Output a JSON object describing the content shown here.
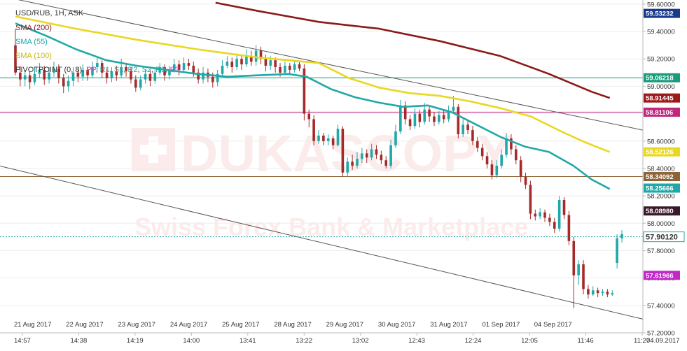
{
  "chart_data": {
    "type": "candlestick",
    "title": "USD/RUB, 1H, ASK",
    "ylim": [
      57.2,
      59.63
    ],
    "y_ticks": [
      "59.60000",
      "59.40000",
      "59.20000",
      "59.00000",
      "58.80000",
      "58.60000",
      "58.40000",
      "58.20000",
      "58.00000",
      "57.80000",
      "57.60000",
      "57.40000",
      "57.20000"
    ],
    "date_labels": [
      "21 Aug 2017",
      "22 Aug 2017",
      "23 Aug 2017",
      "24 Aug 2017",
      "25 Aug 2017",
      "28 Aug 2017",
      "29 Aug 2017",
      "30 Aug 2017",
      "31 Aug 2017",
      "01 Sep 2017",
      "04 Sep 2017"
    ],
    "time_labels": [
      "14:57",
      "14:38",
      "14:19",
      "14:00",
      "13:41",
      "13:22",
      "13:02",
      "12:43",
      "12:24",
      "12:05",
      "11:46",
      "11:27"
    ],
    "time_end_date": "04.09.2017",
    "legend": [
      {
        "name": "SMA (200)",
        "color": "#8b1a1a"
      },
      {
        "name": "SMA (55)",
        "color": "#20a8a8"
      },
      {
        "name": "SMA (100)",
        "color": "#e8d820"
      }
    ],
    "pivot_legend": {
      "label": "PIVOTPOINT (0, 8)",
      "items": [
        {
          "name": "PP",
          "color": "#d040c8"
        },
        {
          "name": "R1",
          "color": "#20a8a8"
        },
        {
          "name": "S1",
          "color": "#20a8a8"
        },
        {
          "name": "R2",
          "color": "#20a8a8"
        },
        {
          "name": "S2",
          "color": "#20a8a8"
        },
        {
          "name": "R3",
          "color": "#20a8a8"
        },
        {
          "name": "S3",
          "color": "#d040c8"
        }
      ]
    },
    "badges": [
      {
        "value": "59.53232",
        "color": "#1a3a8c"
      },
      {
        "value": "59.06218",
        "color": "#1a9c7c"
      },
      {
        "value": "58.91445",
        "color": "#9c1a1a"
      },
      {
        "value": "58.81106",
        "color": "#c0287c"
      },
      {
        "value": "58.52126",
        "color": "#e8d820"
      },
      {
        "value": "58.34092",
        "color": "#8c6438"
      },
      {
        "value": "58.25666",
        "color": "#20a8a8"
      },
      {
        "value": "58.08980",
        "color": "#3a1a2a"
      },
      {
        "value": "57.90120",
        "color": "#20a8a8",
        "current": true
      },
      {
        "value": "57.61966",
        "color": "#c028c8"
      }
    ],
    "horizontal_levels": [
      {
        "value": 59.06218,
        "color": "#1a9c7c"
      },
      {
        "value": 58.81106,
        "color": "#c0287c"
      },
      {
        "value": 58.34092,
        "color": "#8c6438"
      },
      {
        "value": 57.9012,
        "color": "#20a8a8",
        "dashed": true
      }
    ],
    "trend_lines": [
      {
        "from": [
          0,
          59.66
        ],
        "to": [
          1.0,
          58.68
        ]
      },
      {
        "from": [
          -0.02,
          58.44
        ],
        "to": [
          1.0,
          57.3
        ]
      }
    ],
    "sma200": [
      [
        0.33,
        59.61
      ],
      [
        0.4,
        59.55
      ],
      [
        0.5,
        59.47
      ],
      [
        0.6,
        59.42
      ],
      [
        0.7,
        59.33
      ],
      [
        0.8,
        59.22
      ],
      [
        0.88,
        59.09
      ],
      [
        0.95,
        58.96
      ],
      [
        0.98,
        58.915
      ]
    ],
    "sma100": [
      [
        0.0,
        59.51
      ],
      [
        0.1,
        59.42
      ],
      [
        0.2,
        59.34
      ],
      [
        0.3,
        59.27
      ],
      [
        0.4,
        59.21
      ],
      [
        0.5,
        59.17
      ],
      [
        0.55,
        59.06
      ],
      [
        0.6,
        58.99
      ],
      [
        0.65,
        58.95
      ],
      [
        0.7,
        58.93
      ],
      [
        0.75,
        58.89
      ],
      [
        0.8,
        58.84
      ],
      [
        0.85,
        58.78
      ],
      [
        0.9,
        58.67
      ],
      [
        0.94,
        58.59
      ],
      [
        0.98,
        58.52
      ]
    ],
    "sma55": [
      [
        0.0,
        59.46
      ],
      [
        0.05,
        59.37
      ],
      [
        0.1,
        59.27
      ],
      [
        0.15,
        59.19
      ],
      [
        0.2,
        59.15
      ],
      [
        0.25,
        59.12
      ],
      [
        0.3,
        59.09
      ],
      [
        0.35,
        59.07
      ],
      [
        0.4,
        59.08
      ],
      [
        0.45,
        59.09
      ],
      [
        0.48,
        59.07
      ],
      [
        0.52,
        58.98
      ],
      [
        0.56,
        58.92
      ],
      [
        0.6,
        58.88
      ],
      [
        0.64,
        58.85
      ],
      [
        0.68,
        58.86
      ],
      [
        0.72,
        58.81
      ],
      [
        0.76,
        58.72
      ],
      [
        0.8,
        58.63
      ],
      [
        0.84,
        58.56
      ],
      [
        0.88,
        58.52
      ],
      [
        0.92,
        58.42
      ],
      [
        0.95,
        58.32
      ],
      [
        0.98,
        58.25
      ]
    ],
    "candles": [
      [
        59.3,
        59.1,
        59.42,
        59.08
      ],
      [
        59.1,
        59.05,
        59.15,
        59.0
      ],
      [
        59.05,
        59.08,
        59.12,
        59.0
      ],
      [
        59.08,
        59.03,
        59.11,
        58.98
      ],
      [
        59.03,
        59.09,
        59.14,
        59.01
      ],
      [
        59.09,
        59.12,
        59.17,
        59.06
      ],
      [
        59.12,
        59.05,
        59.15,
        59.01
      ],
      [
        59.05,
        59.1,
        59.14,
        59.02
      ],
      [
        59.1,
        59.13,
        59.18,
        59.07
      ],
      [
        59.13,
        59.06,
        59.16,
        59.02
      ],
      [
        59.06,
        59.0,
        59.09,
        58.95
      ],
      [
        59.0,
        59.04,
        59.08,
        58.96
      ],
      [
        59.04,
        59.1,
        59.14,
        59.0
      ],
      [
        59.1,
        59.07,
        59.13,
        59.03
      ],
      [
        59.07,
        59.12,
        59.16,
        59.04
      ],
      [
        59.12,
        59.08,
        59.14,
        59.04
      ],
      [
        59.08,
        59.14,
        59.18,
        59.06
      ],
      [
        59.14,
        59.17,
        59.21,
        59.11
      ],
      [
        59.17,
        59.1,
        59.19,
        59.06
      ],
      [
        59.1,
        59.06,
        59.13,
        59.02
      ],
      [
        59.06,
        59.11,
        59.14,
        59.03
      ],
      [
        59.11,
        59.08,
        59.15,
        59.04
      ],
      [
        59.08,
        59.14,
        59.2,
        59.06
      ],
      [
        59.14,
        59.11,
        59.17,
        59.07
      ],
      [
        59.11,
        59.05,
        59.14,
        59.02
      ],
      [
        59.05,
        58.99,
        59.08,
        58.96
      ],
      [
        58.99,
        59.05,
        59.08,
        58.97
      ],
      [
        59.05,
        59.09,
        59.12,
        59.02
      ],
      [
        59.09,
        59.04,
        59.12,
        59.0
      ],
      [
        59.04,
        59.1,
        59.13,
        59.02
      ],
      [
        59.1,
        59.14,
        59.17,
        59.08
      ],
      [
        59.14,
        59.08,
        59.16,
        59.04
      ],
      [
        59.08,
        59.12,
        59.15,
        59.05
      ],
      [
        59.12,
        59.16,
        59.2,
        59.1
      ],
      [
        59.16,
        59.12,
        59.19,
        59.08
      ],
      [
        59.12,
        59.17,
        59.21,
        59.1
      ],
      [
        59.17,
        59.15,
        59.2,
        59.12
      ],
      [
        59.15,
        59.1,
        59.18,
        59.07
      ],
      [
        59.1,
        59.05,
        59.13,
        59.02
      ],
      [
        59.05,
        59.1,
        59.14,
        59.02
      ],
      [
        59.1,
        59.07,
        59.13,
        59.03
      ],
      [
        59.07,
        59.03,
        59.1,
        58.99
      ],
      [
        59.03,
        59.09,
        59.12,
        59.0
      ],
      [
        59.09,
        59.15,
        59.19,
        59.07
      ],
      [
        59.15,
        59.18,
        59.22,
        59.13
      ],
      [
        59.18,
        59.14,
        59.21,
        59.1
      ],
      [
        59.14,
        59.2,
        59.24,
        59.12
      ],
      [
        59.2,
        59.16,
        59.23,
        59.12
      ],
      [
        59.16,
        59.22,
        59.27,
        59.14
      ],
      [
        59.22,
        59.18,
        59.26,
        59.15
      ],
      [
        59.18,
        59.26,
        59.3,
        59.15
      ],
      [
        59.26,
        59.2,
        59.29,
        59.16
      ],
      [
        59.2,
        59.15,
        59.23,
        59.11
      ],
      [
        59.15,
        59.19,
        59.22,
        59.12
      ],
      [
        59.19,
        59.14,
        59.21,
        59.1
      ],
      [
        59.14,
        59.1,
        59.17,
        59.07
      ],
      [
        59.1,
        59.15,
        59.18,
        59.08
      ],
      [
        59.15,
        59.12,
        59.17,
        59.09
      ],
      [
        59.12,
        59.16,
        59.19,
        59.1
      ],
      [
        59.16,
        59.13,
        59.18,
        59.11
      ],
      [
        59.13,
        58.8,
        59.16,
        58.75
      ],
      [
        58.8,
        58.76,
        58.83,
        58.7
      ],
      [
        58.76,
        58.6,
        58.79,
        58.57
      ],
      [
        58.6,
        58.64,
        58.68,
        58.58
      ],
      [
        58.64,
        58.6,
        58.66,
        58.57
      ],
      [
        58.6,
        58.62,
        58.65,
        58.57
      ],
      [
        58.62,
        58.57,
        58.64,
        58.54
      ],
      [
        58.57,
        58.69,
        58.72,
        58.56
      ],
      [
        58.69,
        58.37,
        58.71,
        58.34
      ],
      [
        58.37,
        58.45,
        58.48,
        58.34
      ],
      [
        58.45,
        58.42,
        58.5,
        58.39
      ],
      [
        58.42,
        58.47,
        58.52,
        58.4
      ],
      [
        58.47,
        58.51,
        58.55,
        58.44
      ],
      [
        58.51,
        58.48,
        58.54,
        58.44
      ],
      [
        58.48,
        58.54,
        58.58,
        58.46
      ],
      [
        58.54,
        58.5,
        58.57,
        58.47
      ],
      [
        58.5,
        58.46,
        58.53,
        58.43
      ],
      [
        58.46,
        58.42,
        58.49,
        58.4
      ],
      [
        58.42,
        58.57,
        58.61,
        58.4
      ],
      [
        58.57,
        58.67,
        58.72,
        58.55
      ],
      [
        58.67,
        58.86,
        58.9,
        58.65
      ],
      [
        58.86,
        58.76,
        58.89,
        58.72
      ],
      [
        58.76,
        58.71,
        58.79,
        58.68
      ],
      [
        58.71,
        58.8,
        58.84,
        58.69
      ],
      [
        58.8,
        58.74,
        58.83,
        58.7
      ],
      [
        58.74,
        58.83,
        58.88,
        58.72
      ],
      [
        58.83,
        58.78,
        58.86,
        58.74
      ],
      [
        58.78,
        58.74,
        58.81,
        58.71
      ],
      [
        58.74,
        58.79,
        58.82,
        58.72
      ],
      [
        58.79,
        58.76,
        58.83,
        58.73
      ],
      [
        58.76,
        58.82,
        58.86,
        58.74
      ],
      [
        58.82,
        58.85,
        58.93,
        58.8
      ],
      [
        58.85,
        58.65,
        58.87,
        58.62
      ],
      [
        58.65,
        58.72,
        58.76,
        58.63
      ],
      [
        58.72,
        58.68,
        58.75,
        58.65
      ],
      [
        58.68,
        58.6,
        58.71,
        58.57
      ],
      [
        58.6,
        58.55,
        58.63,
        58.52
      ],
      [
        58.55,
        58.49,
        58.58,
        58.46
      ],
      [
        58.49,
        58.43,
        58.52,
        58.4
      ],
      [
        58.43,
        58.35,
        58.46,
        58.32
      ],
      [
        58.35,
        58.42,
        58.46,
        58.33
      ],
      [
        58.42,
        58.5,
        58.54,
        58.4
      ],
      [
        58.5,
        58.62,
        58.66,
        58.48
      ],
      [
        58.62,
        58.54,
        58.65,
        58.5
      ],
      [
        58.54,
        58.46,
        58.57,
        58.43
      ],
      [
        58.46,
        58.34,
        58.49,
        58.3
      ],
      [
        58.34,
        58.28,
        58.37,
        58.25
      ],
      [
        58.28,
        58.07,
        58.31,
        58.03
      ],
      [
        58.07,
        58.05,
        58.1,
        58.02
      ],
      [
        58.05,
        58.08,
        58.11,
        58.03
      ],
      [
        58.08,
        58.04,
        58.1,
        58.01
      ],
      [
        58.04,
        58.01,
        58.07,
        57.98
      ],
      [
        58.01,
        57.96,
        58.04,
        57.93
      ],
      [
        57.96,
        58.17,
        58.2,
        57.94
      ],
      [
        58.17,
        58.06,
        58.19,
        58.03
      ],
      [
        58.06,
        57.87,
        58.09,
        57.84
      ],
      [
        57.87,
        57.62,
        57.9,
        57.38
      ],
      [
        57.62,
        57.7,
        57.73,
        57.55
      ],
      [
        57.7,
        57.52,
        57.73,
        57.48
      ],
      [
        57.52,
        57.48,
        57.55,
        57.45
      ],
      [
        57.48,
        57.51,
        57.54,
        57.47
      ],
      [
        57.51,
        57.49,
        57.53,
        57.46
      ],
      [
        57.49,
        57.5,
        57.52,
        57.47
      ],
      [
        57.5,
        57.48,
        57.52,
        57.46
      ],
      [
        57.48,
        57.49,
        57.51,
        57.47
      ],
      [
        57.71,
        57.89,
        57.92,
        57.67
      ],
      [
        57.89,
        57.92,
        57.95,
        57.86
      ]
    ]
  },
  "watermark": {
    "brand": "DUKASCOPY",
    "tagline": "Swiss Forex Bank & Marketplace"
  },
  "colors": {
    "up": "#20a8a8",
    "down": "#a52a2a",
    "axis": "#bbbbbb",
    "grid": "#eeeeee"
  }
}
